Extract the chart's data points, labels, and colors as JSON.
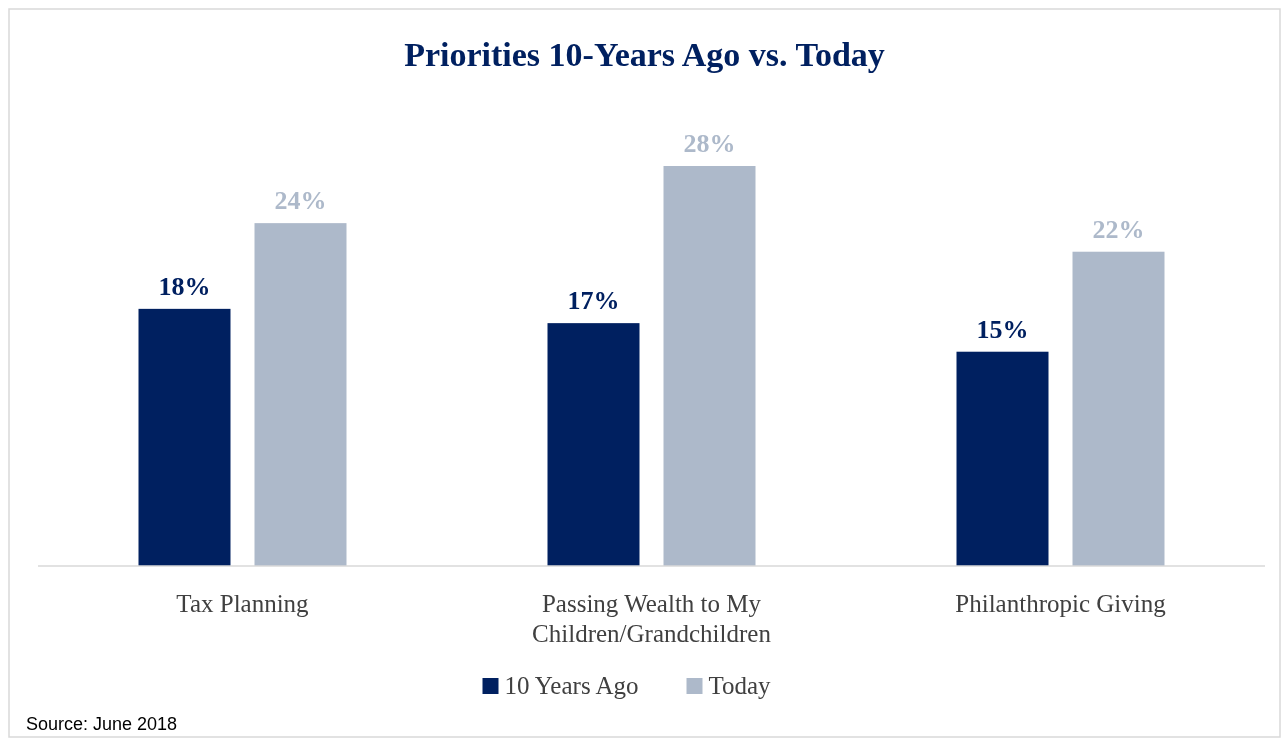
{
  "chart_data": {
    "type": "bar",
    "title": "Priorities 10-Years Ago vs. Today",
    "categories": [
      "Tax Planning",
      "Passing Wealth to My Children/Grandchildren",
      "Philanthropic Giving"
    ],
    "series": [
      {
        "name": "10 Years Ago",
        "color": "#002060",
        "values": [
          18,
          17,
          15
        ],
        "value_labels": [
          "18%",
          "17%",
          "15%"
        ]
      },
      {
        "name": "Today",
        "color": "#adb9ca",
        "values": [
          24,
          28,
          22
        ],
        "value_labels": [
          "24%",
          "28%",
          "22%"
        ]
      }
    ],
    "legend": "bottom",
    "annotations": [
      "Source: June 2018"
    ]
  }
}
